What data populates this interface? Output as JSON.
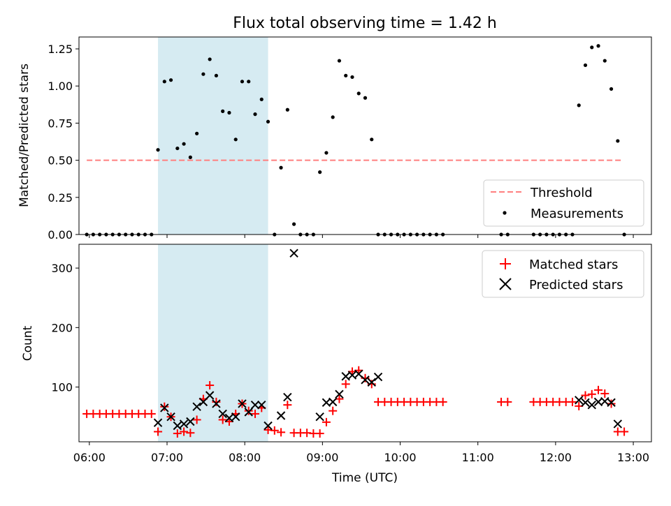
{
  "chart_data": [
    {
      "type": "scatter",
      "title": "Flux total observing time = 1.42 h",
      "ylabel": "Matched/Predicted stars",
      "xlim": [
        "05:52",
        "13:14"
      ],
      "ylim": [
        0,
        1.33
      ],
      "yticks": [
        "0.00",
        "0.25",
        "0.50",
        "0.75",
        "1.00",
        "1.25"
      ],
      "highlight_span": [
        "06:53",
        "08:18"
      ],
      "threshold": {
        "label": "Threshold",
        "value": 0.5,
        "x_start": "05:58",
        "x_end": "12:52",
        "color": "#ff7f7f"
      },
      "legend": {
        "position": "lower right",
        "entries": [
          "Threshold",
          "Measurements"
        ]
      },
      "series": [
        {
          "name": "Measurements",
          "color": "#000000",
          "points": [
            [
              "05:58",
              0
            ],
            [
              "06:03",
              0
            ],
            [
              "06:08",
              0
            ],
            [
              "06:13",
              0
            ],
            [
              "06:18",
              0
            ],
            [
              "06:23",
              0
            ],
            [
              "06:28",
              0
            ],
            [
              "06:33",
              0
            ],
            [
              "06:38",
              0
            ],
            [
              "06:43",
              0
            ],
            [
              "06:48",
              0
            ],
            [
              "06:53",
              0.57
            ],
            [
              "06:58",
              1.03
            ],
            [
              "07:03",
              1.04
            ],
            [
              "07:08",
              0.58
            ],
            [
              "07:13",
              0.61
            ],
            [
              "07:18",
              0.52
            ],
            [
              "07:23",
              0.68
            ],
            [
              "07:28",
              1.08
            ],
            [
              "07:33",
              1.18
            ],
            [
              "07:38",
              1.07
            ],
            [
              "07:43",
              0.83
            ],
            [
              "07:48",
              0.82
            ],
            [
              "07:53",
              0.64
            ],
            [
              "07:58",
              1.03
            ],
            [
              "08:03",
              1.03
            ],
            [
              "08:08",
              0.81
            ],
            [
              "08:13",
              0.91
            ],
            [
              "08:18",
              0.76
            ],
            [
              "08:23",
              0
            ],
            [
              "08:28",
              0.45
            ],
            [
              "08:33",
              0.84
            ],
            [
              "08:38",
              0.07
            ],
            [
              "08:43",
              0
            ],
            [
              "08:48",
              0
            ],
            [
              "08:53",
              0
            ],
            [
              "08:58",
              0.42
            ],
            [
              "09:03",
              0.55
            ],
            [
              "09:08",
              0.79
            ],
            [
              "09:13",
              1.17
            ],
            [
              "09:18",
              1.07
            ],
            [
              "09:23",
              1.06
            ],
            [
              "09:28",
              0.95
            ],
            [
              "09:33",
              0.92
            ],
            [
              "09:38",
              0.64
            ],
            [
              "09:43",
              0
            ],
            [
              "09:48",
              0
            ],
            [
              "09:53",
              0
            ],
            [
              "09:58",
              0
            ],
            [
              "10:03",
              0
            ],
            [
              "10:08",
              0
            ],
            [
              "10:13",
              0
            ],
            [
              "10:18",
              0
            ],
            [
              "10:23",
              0
            ],
            [
              "10:28",
              0
            ],
            [
              "10:33",
              0
            ],
            [
              "11:18",
              0
            ],
            [
              "11:23",
              0
            ],
            [
              "11:43",
              0
            ],
            [
              "11:48",
              0
            ],
            [
              "11:53",
              0
            ],
            [
              "11:58",
              0
            ],
            [
              "12:03",
              0
            ],
            [
              "12:08",
              0
            ],
            [
              "12:13",
              0
            ],
            [
              "12:18",
              0.87
            ],
            [
              "12:23",
              1.14
            ],
            [
              "12:28",
              1.26
            ],
            [
              "12:33",
              1.27
            ],
            [
              "12:38",
              1.17
            ],
            [
              "12:43",
              0.98
            ],
            [
              "12:48",
              0.63
            ],
            [
              "12:53",
              0
            ]
          ]
        }
      ]
    },
    {
      "type": "scatter",
      "xlabel": "Time (UTC)",
      "ylabel": "Count",
      "xlim": [
        "05:52",
        "13:14"
      ],
      "ylim": [
        8,
        340
      ],
      "xticks": [
        "06:00",
        "07:00",
        "08:00",
        "09:00",
        "10:00",
        "11:00",
        "12:00",
        "13:00"
      ],
      "yticks": [
        "100",
        "200",
        "300"
      ],
      "highlight_span": [
        "06:53",
        "08:18"
      ],
      "legend": {
        "position": "upper right",
        "entries": [
          "Matched stars",
          "Predicted stars"
        ]
      },
      "series": [
        {
          "name": "Matched stars",
          "marker": "plus",
          "color": "#ff0000",
          "points": [
            [
              "05:58",
              55
            ],
            [
              "06:03",
              55
            ],
            [
              "06:08",
              55
            ],
            [
              "06:13",
              55
            ],
            [
              "06:18",
              55
            ],
            [
              "06:23",
              55
            ],
            [
              "06:28",
              55
            ],
            [
              "06:33",
              55
            ],
            [
              "06:38",
              55
            ],
            [
              "06:43",
              55
            ],
            [
              "06:48",
              55
            ],
            [
              "06:53",
              25
            ],
            [
              "06:58",
              67
            ],
            [
              "07:03",
              50
            ],
            [
              "07:08",
              22
            ],
            [
              "07:13",
              25
            ],
            [
              "07:18",
              23
            ],
            [
              "07:23",
              45
            ],
            [
              "07:28",
              80
            ],
            [
              "07:33",
              103
            ],
            [
              "07:38",
              75
            ],
            [
              "07:43",
              45
            ],
            [
              "07:48",
              42
            ],
            [
              "07:53",
              55
            ],
            [
              "07:58",
              72
            ],
            [
              "08:03",
              60
            ],
            [
              "08:08",
              55
            ],
            [
              "08:13",
              65
            ],
            [
              "08:18",
              28
            ],
            [
              "08:23",
              27
            ],
            [
              "08:28",
              24
            ],
            [
              "08:33",
              70
            ],
            [
              "08:38",
              23
            ],
            [
              "08:43",
              23
            ],
            [
              "08:48",
              23
            ],
            [
              "08:53",
              22
            ],
            [
              "08:58",
              22
            ],
            [
              "09:03",
              41
            ],
            [
              "09:08",
              60
            ],
            [
              "09:13",
              80
            ],
            [
              "09:18",
              105
            ],
            [
              "09:23",
              126
            ],
            [
              "09:28",
              128
            ],
            [
              "09:33",
              115
            ],
            [
              "09:38",
              105
            ],
            [
              "09:43",
              75
            ],
            [
              "09:48",
              75
            ],
            [
              "09:53",
              75
            ],
            [
              "09:58",
              75
            ],
            [
              "10:03",
              75
            ],
            [
              "10:08",
              75
            ],
            [
              "10:13",
              75
            ],
            [
              "10:18",
              75
            ],
            [
              "10:23",
              75
            ],
            [
              "10:28",
              75
            ],
            [
              "10:33",
              75
            ],
            [
              "11:18",
              75
            ],
            [
              "11:23",
              75
            ],
            [
              "11:43",
              75
            ],
            [
              "11:48",
              75
            ],
            [
              "11:53",
              75
            ],
            [
              "11:58",
              75
            ],
            [
              "12:03",
              75
            ],
            [
              "12:08",
              75
            ],
            [
              "12:13",
              75
            ],
            [
              "12:18",
              68
            ],
            [
              "12:23",
              86
            ],
            [
              "12:28",
              88
            ],
            [
              "12:33",
              95
            ],
            [
              "12:38",
              89
            ],
            [
              "12:43",
              72
            ],
            [
              "12:48",
              25
            ],
            [
              "12:53",
              25
            ]
          ]
        },
        {
          "name": "Predicted stars",
          "marker": "x",
          "color": "#000000",
          "points": [
            [
              "06:53",
              40
            ],
            [
              "06:58",
              65
            ],
            [
              "07:03",
              50
            ],
            [
              "07:08",
              35
            ],
            [
              "07:13",
              38
            ],
            [
              "07:18",
              42
            ],
            [
              "07:23",
              67
            ],
            [
              "07:28",
              75
            ],
            [
              "07:33",
              86
            ],
            [
              "07:38",
              72
            ],
            [
              "07:43",
              55
            ],
            [
              "07:48",
              48
            ],
            [
              "07:53",
              50
            ],
            [
              "07:58",
              72
            ],
            [
              "08:03",
              58
            ],
            [
              "08:08",
              70
            ],
            [
              "08:13",
              70
            ],
            [
              "08:18",
              35
            ],
            [
              "08:28",
              52
            ],
            [
              "08:33",
              83
            ],
            [
              "08:38",
              325
            ],
            [
              "08:58",
              50
            ],
            [
              "09:03",
              74
            ],
            [
              "09:08",
              75
            ],
            [
              "09:13",
              88
            ],
            [
              "09:18",
              118
            ],
            [
              "09:23",
              120
            ],
            [
              "09:28",
              122
            ],
            [
              "09:33",
              112
            ],
            [
              "09:38",
              108
            ],
            [
              "09:43",
              117
            ],
            [
              "12:18",
              78
            ],
            [
              "12:23",
              74
            ],
            [
              "12:28",
              70
            ],
            [
              "12:33",
              75
            ],
            [
              "12:38",
              76
            ],
            [
              "12:43",
              74
            ],
            [
              "12:48",
              38
            ]
          ]
        }
      ]
    }
  ]
}
